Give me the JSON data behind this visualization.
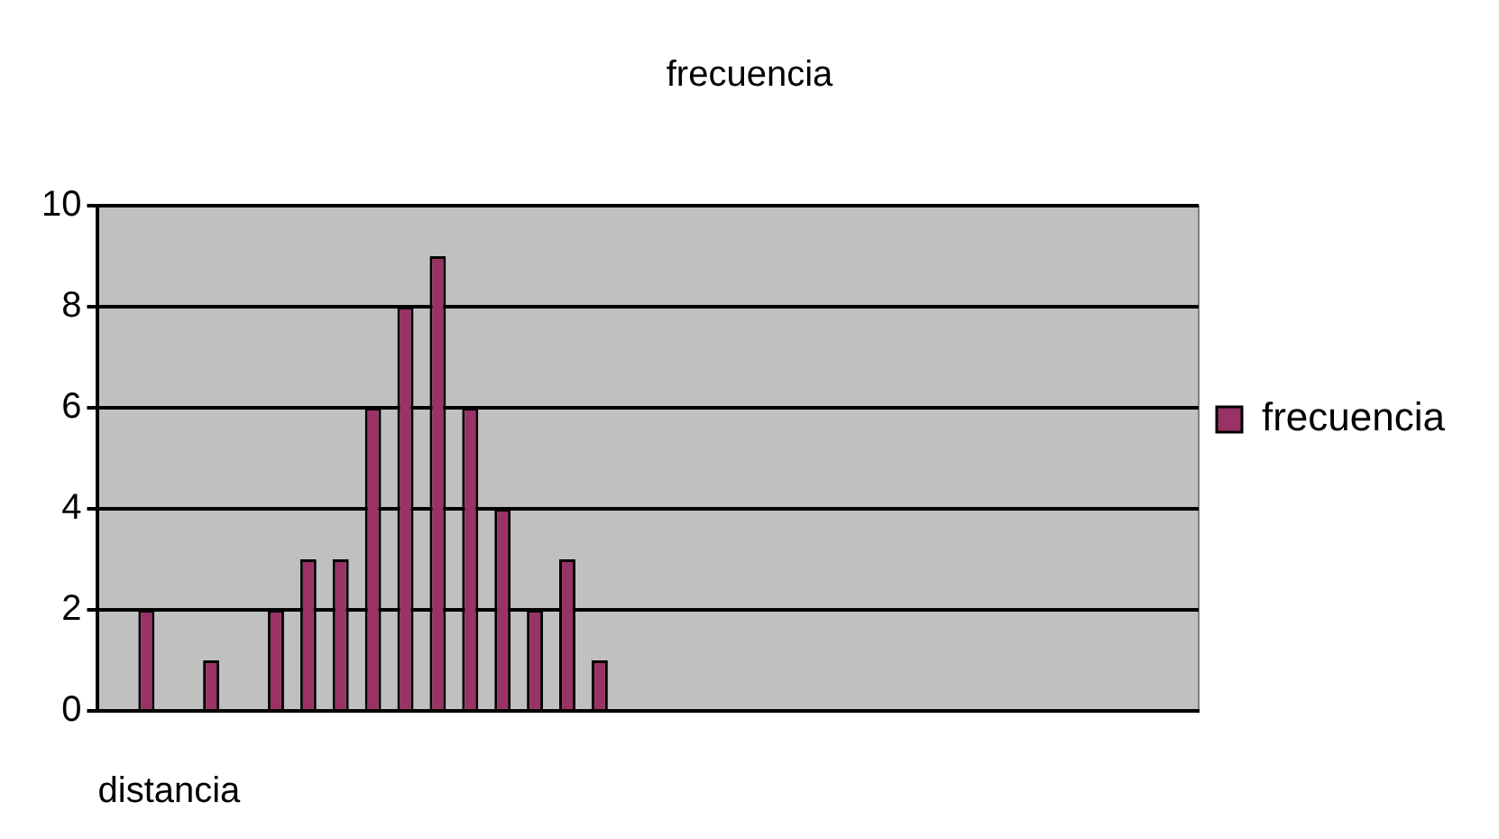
{
  "chart_data": {
    "type": "bar",
    "title": "frecuencia",
    "xlabel": "distancia",
    "categories": [
      null,
      null,
      null,
      null,
      null,
      null,
      null,
      null,
      null,
      null,
      null,
      null,
      null,
      null,
      null,
      null,
      null,
      null,
      null,
      null,
      null,
      null,
      null,
      null,
      null,
      null,
      null,
      null,
      null,
      null,
      null,
      null,
      null,
      null
    ],
    "series": [
      {
        "name": "frecuencia",
        "color": "#993366",
        "values": [
          0,
          2,
          0,
          1,
          0,
          2,
          3,
          3,
          6,
          8,
          9,
          6,
          4,
          2,
          3,
          1,
          0,
          0,
          0,
          0,
          0,
          0,
          0,
          0,
          0,
          0,
          0,
          0,
          0,
          0,
          0,
          0,
          0,
          0
        ]
      }
    ],
    "ylim": [
      0,
      10
    ],
    "yticks": [
      0,
      2,
      4,
      6,
      8,
      10
    ],
    "grid": "y",
    "legend": "right"
  }
}
